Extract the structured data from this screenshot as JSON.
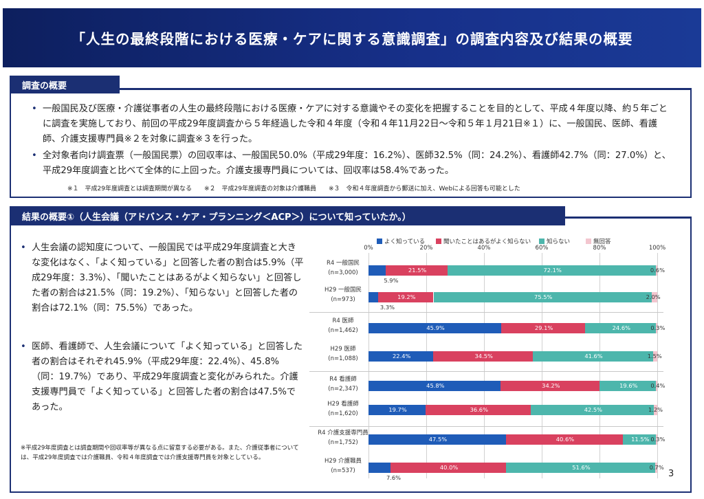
{
  "header": {
    "title": "「人生の最終段階における医療・ケアに関する意識調査」の調査内容及び結果の概要"
  },
  "section1": {
    "label": "調査の概要",
    "bullets": [
      "一般国民及び医療・介護従事者の人生の最終段階における医療・ケアに対する意識やその変化を把握することを目的として、平成４年度以降、約５年ごとに調査を実施しており、前回の平成29年度調査から５年経過した令和４年度（令和４年11月22日〜令和５年１月21日※１）に、一般国民、医師、看護師、介護支援専門員※２を対象に調査※３を行った。",
      "全対象者向け調査票（一般国民票）の回収率は、一般国民50.0%（平成29年度：16.2%）、医師32.5%（同：24.2%）、看護師42.7%（同：27.0%）と、平成29年度調査と比べて全体的に上回った。介護支援専門員については、回収率は58.4%であった。"
    ],
    "notes": "※１　平成29年度調査とは調査期間が異なる　　※２　平成29年度調査の対象は介護職員　　※３　令和４年度調査から郵送に加え、Webによる回答も可能とした"
  },
  "section2": {
    "label": "結果の概要①（人生会議（アドバンス・ケア・プランニング＜ACP＞）について知っていたか。）",
    "bullets": [
      "人生会議の認知度について、一般国民では平成29年度調査と大きな変化はなく、「よく知っている」と回答した者の割合は5.9%（平成29年度：3.3%）、「聞いたことはあるがよく知らない」と回答した者の割合は21.5%（同：19.2%）、「知らない」と回答した者の割合は72.1%（同：75.5%）であった。",
      "医師、看護師で、人生会議について「よく知っている」と回答した者の割合はそれぞれ45.9%（平成29年度：22.4%）、45.8%（同：19.7%）であり、平成29年度調査と変化がみられた。介護支援専門員で「よく知っている」と回答した者の割合は47.5%であった。"
    ],
    "footnote": "※平成29年度調査とは調査期間や回収率等が異なる点に留意する必要がある。また、介護従事者については、平成29年度調査では介護職員、令和４年度調査では介護支援専門員を対象としている。"
  },
  "page_number": "3",
  "chart_data": {
    "type": "bar",
    "orientation": "horizontal-stacked-100",
    "xlim": [
      0,
      100
    ],
    "x_ticks": [
      "0%",
      "20%",
      "40%",
      "60%",
      "80%",
      "100%"
    ],
    "legend_position": "top",
    "series": [
      {
        "name": "よく知っている",
        "color": "#1f5cb8"
      },
      {
        "name": "聞いたことはあるがよく知らない",
        "color": "#d9415f"
      },
      {
        "name": "知らない",
        "color": "#4db6ac"
      },
      {
        "name": "無回答",
        "color": "#f3c6cf"
      }
    ],
    "rows": [
      {
        "label": "R4 一般国民",
        "n": "(n=3,000)",
        "values": [
          5.9,
          21.5,
          72.1,
          0.6
        ],
        "labels": [
          "5.9%",
          "21.5%",
          "72.1%",
          "0.6%"
        ]
      },
      {
        "label": "H29 一般国民",
        "n": "(n=973)",
        "values": [
          3.3,
          19.2,
          75.5,
          2.0
        ],
        "labels": [
          "3.3%",
          "19.2%",
          "75.5%",
          "2.0%"
        ]
      },
      {
        "label": "R4 医師",
        "n": "(n=1,462)",
        "values": [
          45.9,
          29.1,
          24.6,
          0.3
        ],
        "labels": [
          "45.9%",
          "29.1%",
          "24.6%",
          "0.3%"
        ]
      },
      {
        "label": "H29 医師",
        "n": "(n=1,088)",
        "values": [
          22.4,
          34.5,
          41.6,
          1.5
        ],
        "labels": [
          "22.4%",
          "34.5%",
          "41.6%",
          "1.5%"
        ]
      },
      {
        "label": "R4 看護師",
        "n": "(n=2,347)",
        "values": [
          45.8,
          34.2,
          19.6,
          0.4
        ],
        "labels": [
          "45.8%",
          "34.2%",
          "19.6%",
          "0.4%"
        ]
      },
      {
        "label": "H29 看護師",
        "n": "(n=1,620)",
        "values": [
          19.7,
          36.6,
          42.5,
          1.2
        ],
        "labels": [
          "19.7%",
          "36.6%",
          "42.5%",
          "1.2%"
        ]
      },
      {
        "label": "R4 介護支援専門員",
        "n": "(n=1,752)",
        "values": [
          47.5,
          40.6,
          11.5,
          0.3
        ],
        "labels": [
          "47.5%",
          "40.6%",
          "11.5%",
          "0.3%"
        ]
      },
      {
        "label": "H29 介護職員",
        "n": "(n=537)",
        "values": [
          7.6,
          40.0,
          51.6,
          0.7
        ],
        "labels": [
          "7.6%",
          "40.0%",
          "51.6%",
          "0.7%"
        ]
      }
    ]
  }
}
